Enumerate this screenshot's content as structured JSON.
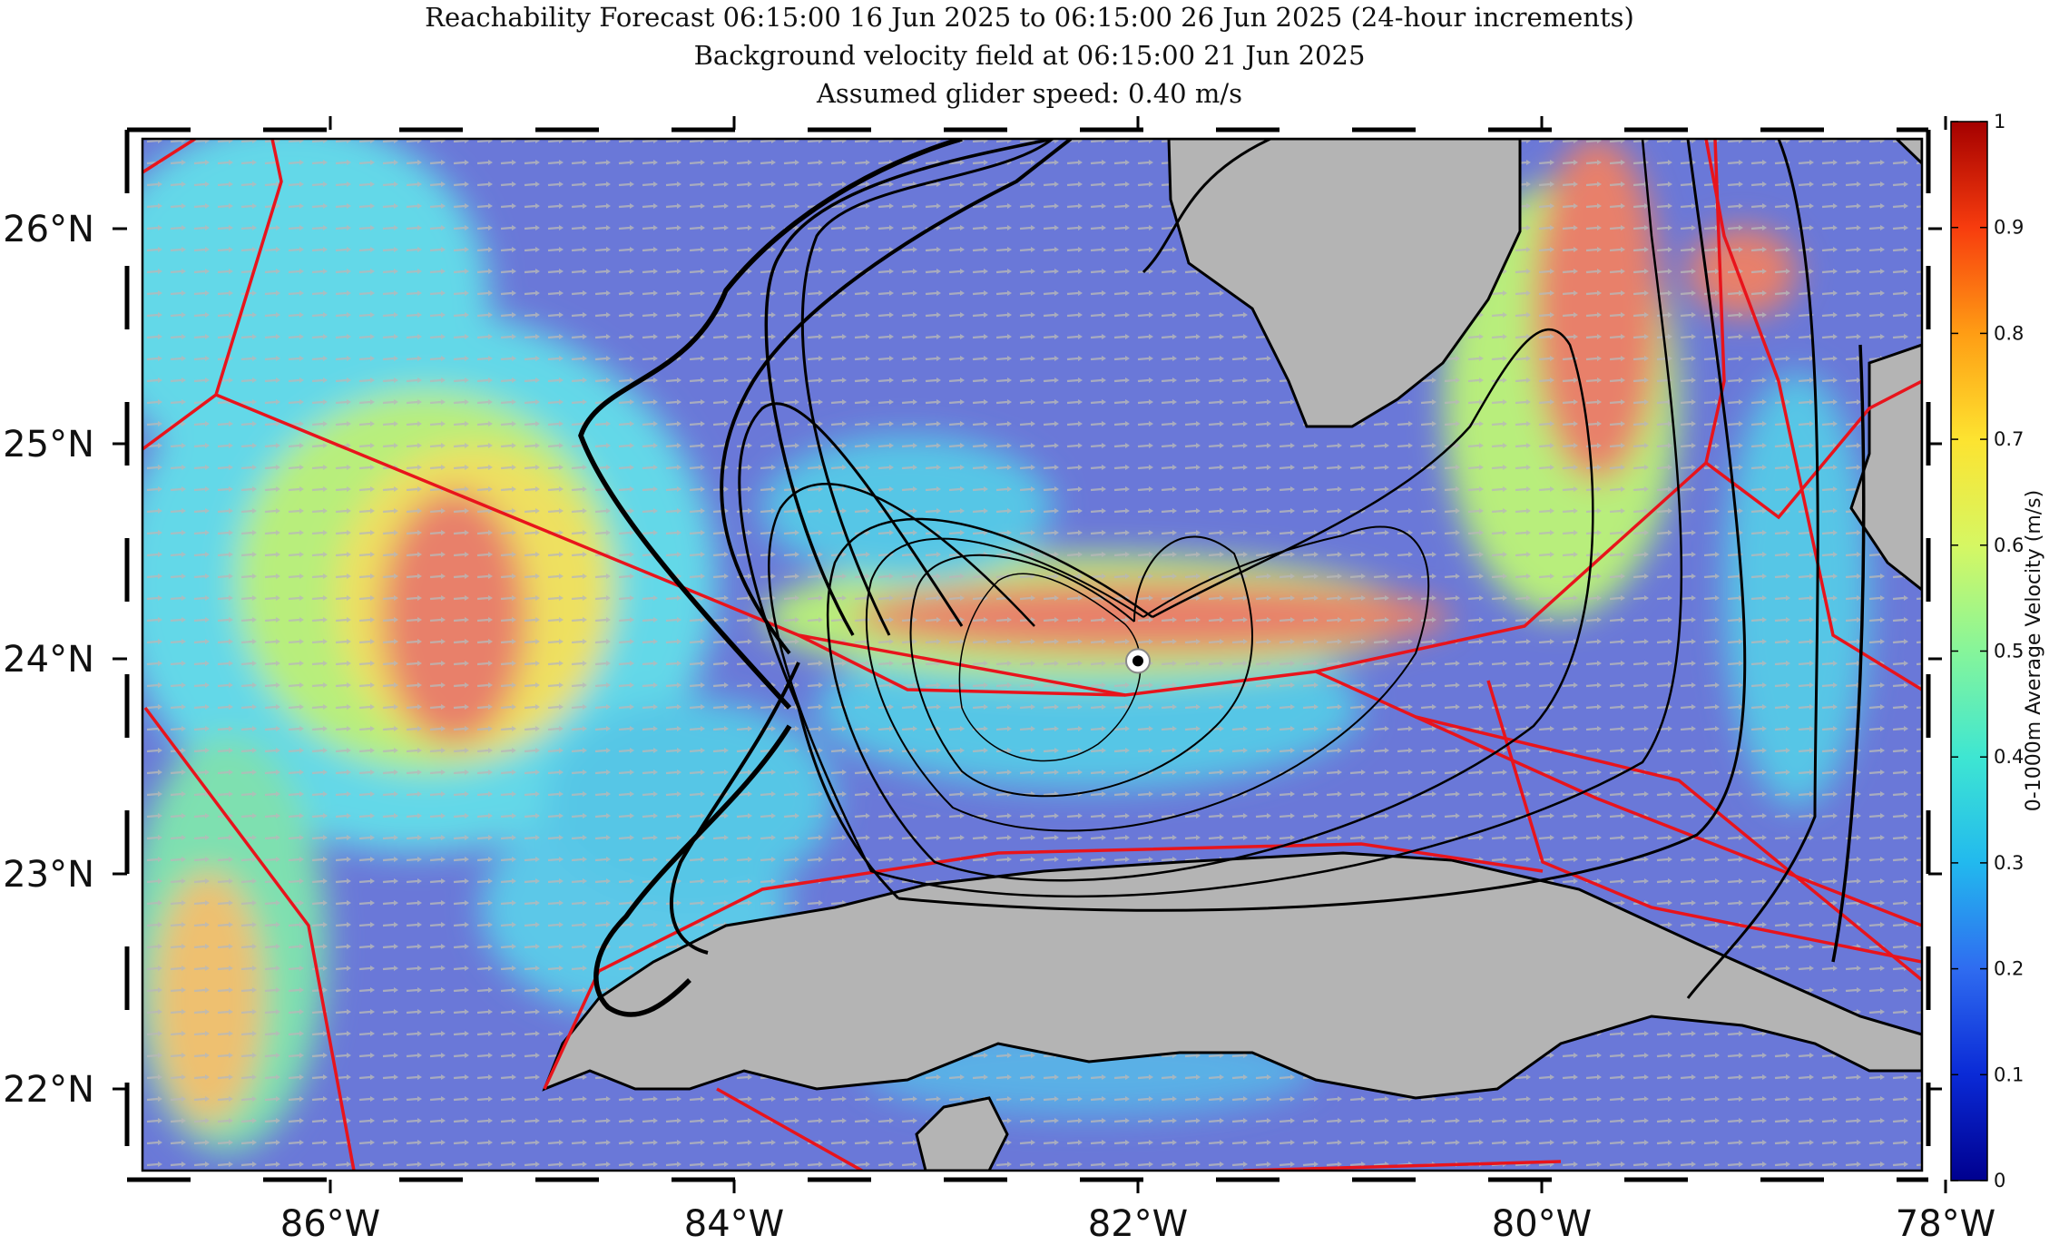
{
  "title": {
    "line1": "Reachability Forecast 06:15:00 16 Jun 2025 to 06:15:00 26 Jun 2025 (24-hour increments)",
    "line2": "Background velocity field at 06:15:00 21 Jun 2025",
    "line3": "Assumed glider speed: 0.40 m/s"
  },
  "map": {
    "lon_ticks": [
      {
        "lon": -86,
        "label": "86°W"
      },
      {
        "lon": -84,
        "label": "84°W"
      },
      {
        "lon": -82,
        "label": "82°W"
      },
      {
        "lon": -80,
        "label": "80°W"
      },
      {
        "lon": -78,
        "label": "78°W"
      }
    ],
    "lat_ticks": [
      {
        "lat": 26,
        "label": "26°N"
      },
      {
        "lat": 25,
        "label": "25°N"
      },
      {
        "lat": 24,
        "label": "24°N"
      },
      {
        "lat": 23,
        "label": "23°N"
      },
      {
        "lat": 22,
        "label": "22°N"
      }
    ],
    "glider_position": {
      "lon": -82.0,
      "lat": 23.99
    },
    "colors": {
      "land": "#b4b4b4",
      "boundary": "#e8141c",
      "contour": "#000000",
      "arrow": "#b0b0b0"
    }
  },
  "colorbar": {
    "label": "0-1000m Average Velocity (m/s)",
    "ticks": [
      "0",
      "0.1",
      "0.2",
      "0.3",
      "0.4",
      "0.5",
      "0.6",
      "0.7",
      "0.8",
      "0.9",
      "1"
    ],
    "stops": [
      "#00008f",
      "#0a2ad6",
      "#2f6cf0",
      "#22b9ee",
      "#3ee6d2",
      "#86f59a",
      "#d6f763",
      "#fde330",
      "#ff9d14",
      "#f73c0e",
      "#a40000"
    ]
  }
}
